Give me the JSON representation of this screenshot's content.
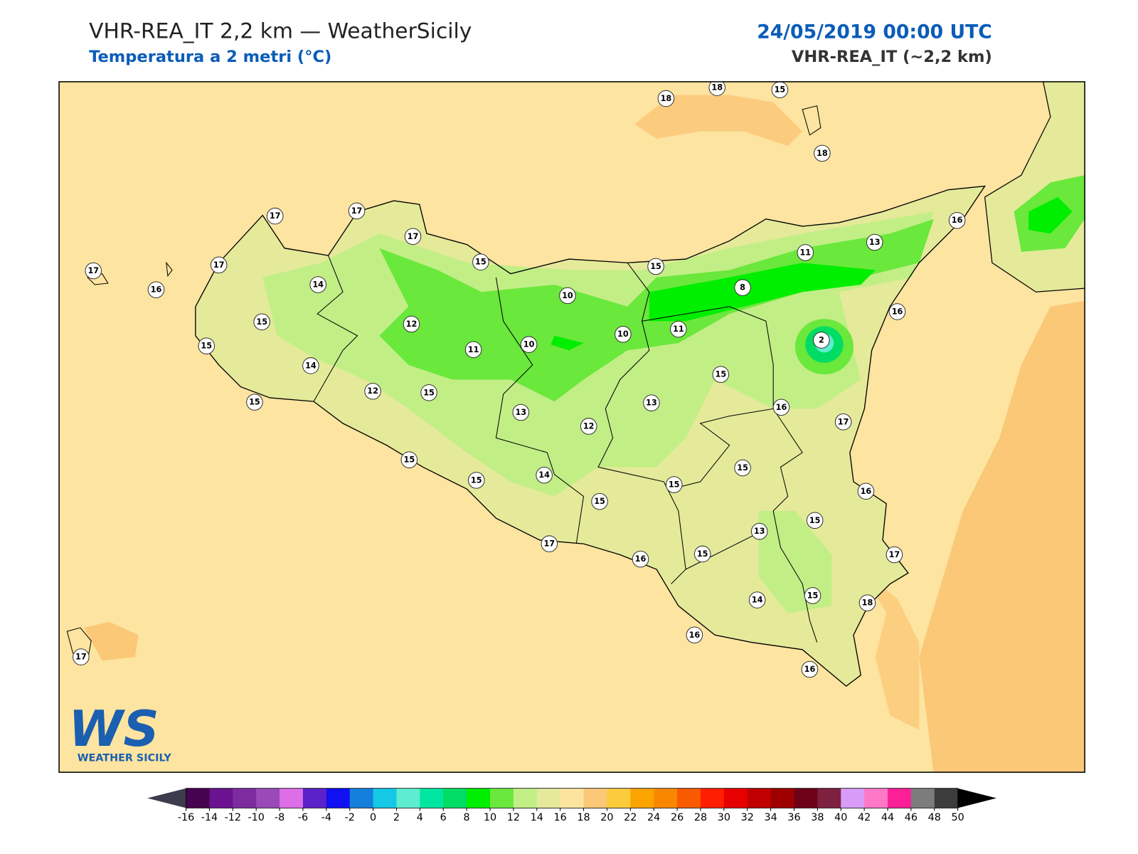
{
  "header": {
    "title": "VHR-REA_IT 2,2 km — WeatherSicily",
    "subtitle": "Temperatura a 2 metri (°C)",
    "date": "24/05/2019 00:00 UTC",
    "model": "VHR-REA_IT (~2,2 km)"
  },
  "stations": [
    18,
    18,
    15,
    18,
    17,
    17,
    17,
    17,
    17,
    16,
    14,
    15,
    15,
    11,
    13,
    16,
    8,
    10,
    15,
    12,
    11,
    10,
    16,
    2,
    15,
    14,
    11,
    10,
    15,
    12,
    15,
    15,
    13,
    13,
    16,
    12,
    17,
    15,
    15,
    15,
    14,
    15,
    15,
    16,
    15,
    13,
    17,
    16,
    15,
    17,
    14,
    15,
    18,
    16,
    16,
    17
  ],
  "colorbar": {
    "ticks": [
      -16,
      -14,
      -12,
      -10,
      -8,
      -6,
      -4,
      -2,
      0,
      2,
      4,
      6,
      8,
      10,
      12,
      14,
      16,
      18,
      20,
      22,
      24,
      26,
      28,
      30,
      32,
      34,
      36,
      38,
      40,
      42,
      44,
      46,
      48,
      50
    ],
    "colors": [
      "#46034f",
      "#6a1290",
      "#7d2ca0",
      "#9a4ab8",
      "#dd6ee8",
      "#5a22c8",
      "#1010f0",
      "#1480dc",
      "#14c8e6",
      "#5eedd0",
      "#00e6a0",
      "#00dc64",
      "#00ee00",
      "#6ae83c",
      "#c2ee86",
      "#e4ea9a",
      "#fde49e",
      "#fbc878",
      "#fccb3c",
      "#fba400",
      "#f98800",
      "#f95a00",
      "#fe1e00",
      "#e60000",
      "#c00000",
      "#9e0000",
      "#6e0018",
      "#7e2040",
      "#d89cf8",
      "#ff78c8",
      "#fb2098",
      "#7c7c7c",
      "#3c3c3c"
    ],
    "under_color": "#3c3c4c",
    "over_color": "#000000"
  },
  "logo": {
    "mark": "WS",
    "text": "WEATHER SICILY"
  }
}
